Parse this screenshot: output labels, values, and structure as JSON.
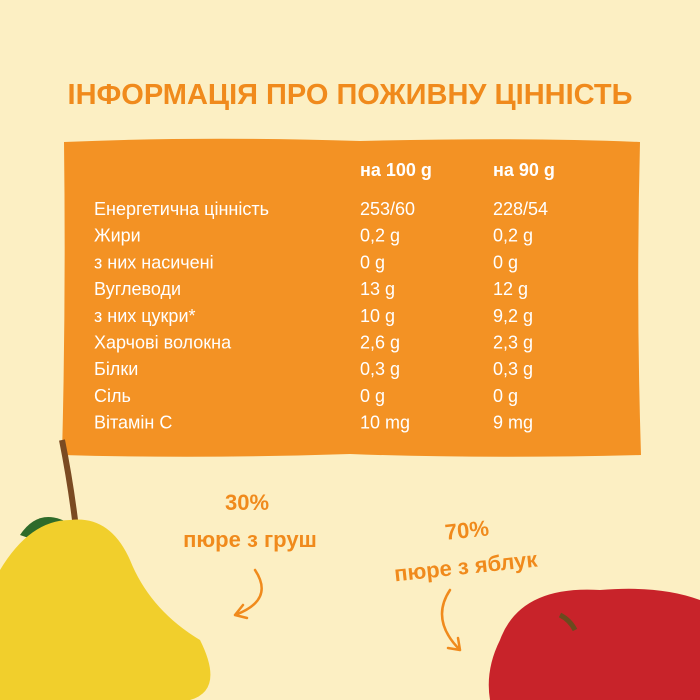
{
  "title": "ІНФОРМАЦІЯ ПРО ПОЖИВНУ ЦІННІСТЬ",
  "table": {
    "columns": [
      "на 100 g",
      "на 90 g"
    ],
    "rows": [
      [
        "Енергетична цінність",
        "253/60",
        "228/54"
      ],
      [
        "Жири",
        "0,2 g",
        "0,2 g"
      ],
      [
        "з них насичені",
        "0 g",
        "0 g"
      ],
      [
        "Вуглеводи",
        "13 g",
        "12 g"
      ],
      [
        "з них цукри*",
        "10 g",
        "9,2 g"
      ],
      [
        "Харчові волокна",
        "2,6 g",
        "2,3 g"
      ],
      [
        "Білки",
        "0,3 g",
        "0,3 g"
      ],
      [
        "Сіль",
        "0 g",
        "0 g"
      ],
      [
        "Вітамін С",
        "10 mg",
        "9 mg"
      ]
    ]
  },
  "callouts": [
    {
      "percent": "30%",
      "text": "пюре з груш"
    },
    {
      "percent": "70%",
      "text": "пюре з яблук"
    }
  ]
}
